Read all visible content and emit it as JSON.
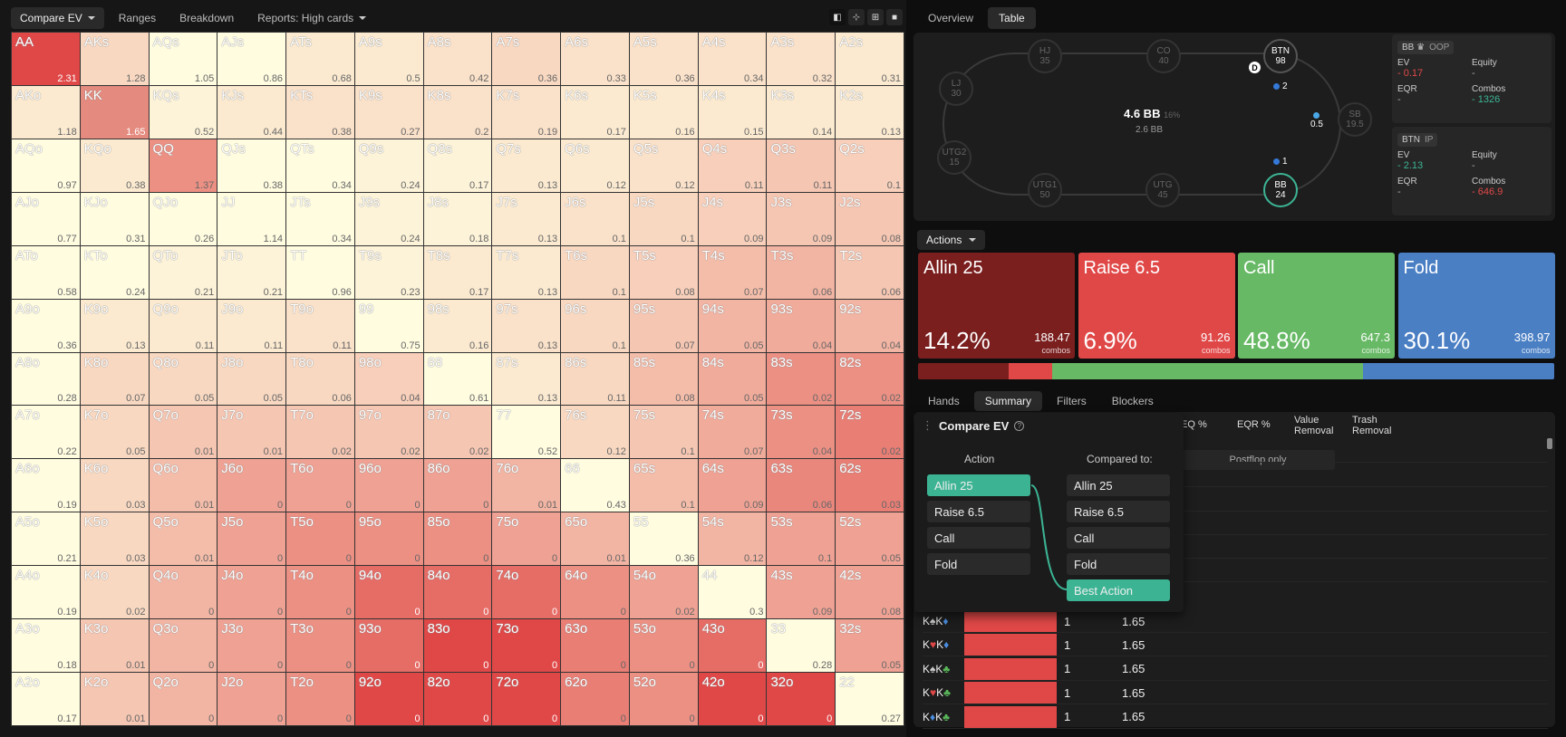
{
  "toolbar": {
    "compare_ev": "Compare EV",
    "ranges": "Ranges",
    "breakdown": "Breakdown",
    "reports": "Reports: High cards"
  },
  "grid": [
    [
      [
        "AA",
        "2.31"
      ],
      [
        "AKs",
        "1.28"
      ],
      [
        "AQs",
        "1.05"
      ],
      [
        "AJs",
        "0.86"
      ],
      [
        "ATs",
        "0.68"
      ],
      [
        "A9s",
        "0.5"
      ],
      [
        "A8s",
        "0.42"
      ],
      [
        "A7s",
        "0.36"
      ],
      [
        "A6s",
        "0.33"
      ],
      [
        "A5s",
        "0.36"
      ],
      [
        "A4s",
        "0.34"
      ],
      [
        "A3s",
        "0.32"
      ],
      [
        "A2s",
        "0.31"
      ]
    ],
    [
      [
        "AKo",
        "1.18"
      ],
      [
        "KK",
        "1.65"
      ],
      [
        "KQs",
        "0.52"
      ],
      [
        "KJs",
        "0.44"
      ],
      [
        "KTs",
        "0.38"
      ],
      [
        "K9s",
        "0.27"
      ],
      [
        "K8s",
        "0.2"
      ],
      [
        "K7s",
        "0.19"
      ],
      [
        "K6s",
        "0.17"
      ],
      [
        "K5s",
        "0.16"
      ],
      [
        "K4s",
        "0.15"
      ],
      [
        "K3s",
        "0.14"
      ],
      [
        "K2s",
        "0.13"
      ]
    ],
    [
      [
        "AQo",
        "0.97"
      ],
      [
        "KQo",
        "0.38"
      ],
      [
        "QQ",
        "1.37"
      ],
      [
        "QJs",
        "0.38"
      ],
      [
        "QTs",
        "0.34"
      ],
      [
        "Q9s",
        "0.24"
      ],
      [
        "Q8s",
        "0.17"
      ],
      [
        "Q7s",
        "0.13"
      ],
      [
        "Q6s",
        "0.12"
      ],
      [
        "Q5s",
        "0.12"
      ],
      [
        "Q4s",
        "0.11"
      ],
      [
        "Q3s",
        "0.11"
      ],
      [
        "Q2s",
        "0.1"
      ]
    ],
    [
      [
        "AJo",
        "0.77"
      ],
      [
        "KJo",
        "0.31"
      ],
      [
        "QJo",
        "0.26"
      ],
      [
        "JJ",
        "1.14"
      ],
      [
        "JTs",
        "0.34"
      ],
      [
        "J9s",
        "0.24"
      ],
      [
        "J8s",
        "0.18"
      ],
      [
        "J7s",
        "0.13"
      ],
      [
        "J6s",
        "0.1"
      ],
      [
        "J5s",
        "0.1"
      ],
      [
        "J4s",
        "0.09"
      ],
      [
        "J3s",
        "0.09"
      ],
      [
        "J2s",
        "0.08"
      ]
    ],
    [
      [
        "ATo",
        "0.58"
      ],
      [
        "KTo",
        "0.24"
      ],
      [
        "QTo",
        "0.21"
      ],
      [
        "JTo",
        "0.21"
      ],
      [
        "TT",
        "0.96"
      ],
      [
        "T9s",
        "0.23"
      ],
      [
        "T8s",
        "0.17"
      ],
      [
        "T7s",
        "0.13"
      ],
      [
        "T6s",
        "0.1"
      ],
      [
        "T5s",
        "0.08"
      ],
      [
        "T4s",
        "0.07"
      ],
      [
        "T3s",
        "0.06"
      ],
      [
        "T2s",
        "0.06"
      ]
    ],
    [
      [
        "A9o",
        "0.36"
      ],
      [
        "K9o",
        "0.13"
      ],
      [
        "Q9o",
        "0.11"
      ],
      [
        "J9o",
        "0.11"
      ],
      [
        "T9o",
        "0.11"
      ],
      [
        "99",
        "0.75"
      ],
      [
        "98s",
        "0.16"
      ],
      [
        "97s",
        "0.13"
      ],
      [
        "96s",
        "0.1"
      ],
      [
        "95s",
        "0.07"
      ],
      [
        "94s",
        "0.05"
      ],
      [
        "93s",
        "0.04"
      ],
      [
        "92s",
        "0.04"
      ]
    ],
    [
      [
        "A8o",
        "0.28"
      ],
      [
        "K8o",
        "0.07"
      ],
      [
        "Q8o",
        "0.05"
      ],
      [
        "J8o",
        "0.05"
      ],
      [
        "T8o",
        "0.06"
      ],
      [
        "98o",
        "0.04"
      ],
      [
        "88",
        "0.61"
      ],
      [
        "87s",
        "0.13"
      ],
      [
        "86s",
        "0.11"
      ],
      [
        "85s",
        "0.08"
      ],
      [
        "84s",
        "0.05"
      ],
      [
        "83s",
        "0.02"
      ],
      [
        "82s",
        "0.02"
      ]
    ],
    [
      [
        "A7o",
        "0.22"
      ],
      [
        "K7o",
        "0.05"
      ],
      [
        "Q7o",
        "0.01"
      ],
      [
        "J7o",
        "0.01"
      ],
      [
        "T7o",
        "0.02"
      ],
      [
        "97o",
        "0.02"
      ],
      [
        "87o",
        "0.02"
      ],
      [
        "77",
        "0.52"
      ],
      [
        "76s",
        "0.12"
      ],
      [
        "75s",
        "0.1"
      ],
      [
        "74s",
        "0.07"
      ],
      [
        "73s",
        "0.04"
      ],
      [
        "72s",
        "0.02"
      ]
    ],
    [
      [
        "A6o",
        "0.19"
      ],
      [
        "K6o",
        "0.03"
      ],
      [
        "Q6o",
        "0.01"
      ],
      [
        "J6o",
        "0"
      ],
      [
        "T6o",
        "0"
      ],
      [
        "96o",
        "0"
      ],
      [
        "86o",
        "0"
      ],
      [
        "76o",
        "0.01"
      ],
      [
        "66",
        "0.43"
      ],
      [
        "65s",
        "0.1"
      ],
      [
        "64s",
        "0.09"
      ],
      [
        "63s",
        "0.06"
      ],
      [
        "62s",
        "0.03"
      ]
    ],
    [
      [
        "A5o",
        "0.21"
      ],
      [
        "K5o",
        "0.03"
      ],
      [
        "Q5o",
        "0.01"
      ],
      [
        "J5o",
        "0"
      ],
      [
        "T5o",
        "0"
      ],
      [
        "95o",
        "0"
      ],
      [
        "85o",
        "0"
      ],
      [
        "75o",
        "0"
      ],
      [
        "65o",
        "0.01"
      ],
      [
        "55",
        "0.36"
      ],
      [
        "54s",
        "0.12"
      ],
      [
        "53s",
        "0.1"
      ],
      [
        "52s",
        "0.05"
      ]
    ],
    [
      [
        "A4o",
        "0.19"
      ],
      [
        "K4o",
        "0.02"
      ],
      [
        "Q4o",
        "0"
      ],
      [
        "J4o",
        "0"
      ],
      [
        "T4o",
        "0"
      ],
      [
        "94o",
        "0"
      ],
      [
        "84o",
        "0"
      ],
      [
        "74o",
        "0"
      ],
      [
        "64o",
        "0"
      ],
      [
        "54o",
        "0.02"
      ],
      [
        "44",
        "0.3"
      ],
      [
        "43s",
        "0.09"
      ],
      [
        "42s",
        "0.08"
      ]
    ],
    [
      [
        "A3o",
        "0.18"
      ],
      [
        "K3o",
        "0.01"
      ],
      [
        "Q3o",
        "0"
      ],
      [
        "J3o",
        "0"
      ],
      [
        "T3o",
        "0"
      ],
      [
        "93o",
        "0"
      ],
      [
        "83o",
        "0"
      ],
      [
        "73o",
        "0"
      ],
      [
        "63o",
        "0"
      ],
      [
        "53o",
        "0"
      ],
      [
        "43o",
        "0"
      ],
      [
        "33",
        "0.28"
      ],
      [
        "32s",
        "0.05"
      ]
    ],
    [
      [
        "A2o",
        "0.17"
      ],
      [
        "K2o",
        "0.01"
      ],
      [
        "Q2o",
        "0"
      ],
      [
        "J2o",
        "0"
      ],
      [
        "T2o",
        "0"
      ],
      [
        "92o",
        "0"
      ],
      [
        "82o",
        "0"
      ],
      [
        "72o",
        "0"
      ],
      [
        "62o",
        "0"
      ],
      [
        "52o",
        "0"
      ],
      [
        "42o",
        "0"
      ],
      [
        "32o",
        "0"
      ],
      [
        "22",
        "0.27"
      ]
    ]
  ],
  "grid_shade": [
    [
      3,
      0.2,
      0,
      0,
      0.1,
      0.1,
      0.15,
      0.2,
      0.15,
      0.15,
      0.15,
      0.15,
      0.1
    ],
    [
      0.1,
      2,
      0.05,
      0.1,
      0.15,
      0.15,
      0.15,
      0.15,
      0.1,
      0.1,
      0.1,
      0.1,
      0.1
    ],
    [
      0,
      0.1,
      0.6,
      0,
      0,
      0.05,
      0.05,
      0.1,
      0.1,
      0.15,
      0.25,
      0.3,
      0.25
    ],
    [
      0,
      0,
      0,
      0,
      0,
      0.05,
      0.05,
      0.1,
      0.15,
      0.2,
      0.25,
      0.3,
      0.3
    ],
    [
      0,
      0,
      0.05,
      0.05,
      0,
      0.05,
      0.1,
      0.1,
      0.2,
      0.25,
      0.35,
      0.4,
      0.3
    ],
    [
      0,
      0.1,
      0.1,
      0.1,
      0.15,
      0,
      0.1,
      0.15,
      0.2,
      0.3,
      0.4,
      0.45,
      0.4
    ],
    [
      0,
      0.2,
      0.2,
      0.2,
      0.2,
      0.25,
      0,
      0.1,
      0.2,
      0.35,
      0.45,
      0.6,
      0.6
    ],
    [
      0,
      0.2,
      0.3,
      0.3,
      0.3,
      0.3,
      0.3,
      0,
      0.2,
      0.3,
      0.45,
      0.6,
      0.7
    ],
    [
      0,
      0.2,
      0.35,
      0.5,
      0.5,
      0.5,
      0.5,
      0.4,
      0,
      0.35,
      0.5,
      0.65,
      0.7
    ],
    [
      0,
      0.2,
      0.35,
      0.5,
      0.6,
      0.6,
      0.6,
      0.5,
      0.4,
      0,
      0.4,
      0.5,
      0.5
    ],
    [
      0,
      0.2,
      0.4,
      0.5,
      0.6,
      0.8,
      0.8,
      0.8,
      0.6,
      0.5,
      0,
      0.5,
      0.5
    ],
    [
      0,
      0.3,
      0.4,
      0.5,
      0.6,
      0.8,
      1,
      1,
      0.7,
      0.6,
      0.8,
      0,
      0.5
    ],
    [
      0,
      0.3,
      0.4,
      0.5,
      0.6,
      1,
      1,
      1,
      0.7,
      0.6,
      1,
      1,
      0
    ]
  ],
  "right_tabs": {
    "overview": "Overview",
    "table": "Table"
  },
  "seats": {
    "lj": [
      "LJ",
      "30"
    ],
    "hj": [
      "HJ",
      "35"
    ],
    "co": [
      "CO",
      "40"
    ],
    "btn": [
      "BTN",
      "98"
    ],
    "sb": [
      "SB",
      "19.5"
    ],
    "bb": [
      "BB",
      "24"
    ],
    "utg": [
      "UTG",
      "45"
    ],
    "utg1": [
      "UTG1",
      "50"
    ],
    "utg2": [
      "UTG2",
      "15"
    ]
  },
  "pot": {
    "main": "4.6 BB",
    "pct": "16%",
    "sub": "2.6 BB"
  },
  "dealer": "D",
  "chips": {
    "btn": "2",
    "sb": "0.5",
    "bb": "1"
  },
  "oop": {
    "player": "BB",
    "crown": "♛",
    "pos": "OOP",
    "ev_l": "EV",
    "ev": "0.17",
    "eq_l": "Equity",
    "eq": "-",
    "eqr_l": "EQR",
    "eqr": "-",
    "cb_l": "Combos",
    "cb": "1326"
  },
  "ip": {
    "player": "BTN",
    "pos": "IP",
    "ev_l": "EV",
    "ev": "2.13",
    "eq_l": "Equity",
    "eq": "-",
    "eqr_l": "EQR",
    "eqr": "-",
    "cb_l": "Combos",
    "cb": "646.9"
  },
  "actions_label": "Actions",
  "actions": [
    {
      "name": "Allin 25",
      "pct": "14.2%",
      "combos": "188.47",
      "cl": "combos",
      "color": "#7a1e1e"
    },
    {
      "name": "Raise 6.5",
      "pct": "6.9%",
      "combos": "91.26",
      "cl": "combos",
      "color": "#e04848"
    },
    {
      "name": "Call",
      "pct": "48.8%",
      "combos": "647.3",
      "cl": "combos",
      "color": "#67b965"
    },
    {
      "name": "Fold",
      "pct": "30.1%",
      "combos": "398.97",
      "cl": "combos",
      "color": "#4a7fc4"
    }
  ],
  "strategy_share": [
    14.2,
    6.9,
    48.8,
    30.1
  ],
  "bottom_tabs": {
    "hands": "Hands",
    "summary": "Summary",
    "filters": "Filters",
    "blockers": "Blockers"
  },
  "cols": {
    "eq": "EQ %",
    "eqr": "EQR %",
    "vr": "Value\nRemoval",
    "tr": "Trash\nRemoval"
  },
  "postflop": "Postflop only",
  "compare": {
    "title": "Compare EV",
    "help": "?",
    "action_h": "Action",
    "cmp_h": "Compared to:",
    "left": [
      "Allin 25",
      "Raise 6.5",
      "Call",
      "Fold"
    ],
    "right": [
      "Allin 25",
      "Raise 6.5",
      "Call",
      "Fold",
      "Best Action"
    ]
  },
  "rows": [
    {
      "c1": "K",
      "s1": "♠",
      "k1": "#ccc",
      "c2": "K",
      "s2": "♦",
      "k2": "#4a8ee0",
      "w": "1",
      "ev": "1.65"
    },
    {
      "c1": "K",
      "s1": "♥",
      "k1": "#e04848",
      "c2": "K",
      "s2": "♦",
      "k2": "#4a8ee0",
      "w": "1",
      "ev": "1.65"
    },
    {
      "c1": "K",
      "s1": "♠",
      "k1": "#ccc",
      "c2": "K",
      "s2": "♣",
      "k2": "#5ab85a",
      "w": "1",
      "ev": "1.65"
    },
    {
      "c1": "K",
      "s1": "♥",
      "k1": "#e04848",
      "c2": "K",
      "s2": "♣",
      "k2": "#5ab85a",
      "w": "1",
      "ev": "1.65"
    },
    {
      "c1": "K",
      "s1": "♦",
      "k1": "#4a8ee0",
      "c2": "K",
      "s2": "♣",
      "k2": "#5ab85a",
      "w": "1",
      "ev": "1.65"
    }
  ]
}
